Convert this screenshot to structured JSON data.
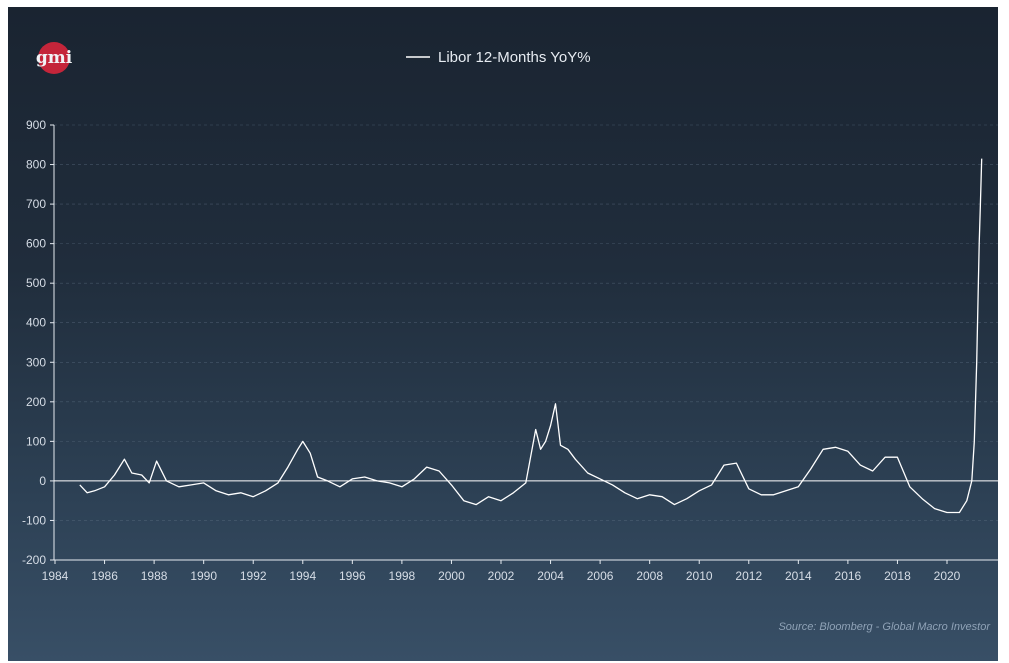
{
  "logo": {
    "text": "gmi",
    "color": "#c4253a"
  },
  "source": "Source: Bloomberg - Global Macro Investor",
  "colors": {
    "line": "#ffffff",
    "grid": "#5f7285",
    "axis": "#e6ebf1"
  },
  "chart_data": {
    "type": "line",
    "title": "",
    "xlabel": "",
    "ylabel": "",
    "xlim": [
      1984,
      2022
    ],
    "ylim": [
      -200,
      900
    ],
    "x_ticks": [
      1984,
      1986,
      1988,
      1990,
      1992,
      1994,
      1996,
      1998,
      2000,
      2002,
      2004,
      2006,
      2008,
      2010,
      2012,
      2014,
      2016,
      2018,
      2020
    ],
    "y_ticks": [
      -200,
      -100,
      0,
      100,
      200,
      300,
      400,
      500,
      600,
      700,
      800,
      900
    ],
    "grid": "horizontal dashed",
    "legend": "top-center",
    "series": [
      {
        "name": "Libor 12-Months YoY%",
        "x": [
          1985.0,
          1985.3,
          1985.6,
          1986.0,
          1986.4,
          1986.8,
          1987.1,
          1987.5,
          1987.8,
          1988.1,
          1988.5,
          1989.0,
          1989.5,
          1990.0,
          1990.5,
          1991.0,
          1991.5,
          1992.0,
          1992.5,
          1993.0,
          1993.4,
          1993.8,
          1994.0,
          1994.3,
          1994.6,
          1995.0,
          1995.5,
          1996.0,
          1996.5,
          1997.0,
          1997.5,
          1998.0,
          1998.5,
          1999.0,
          1999.5,
          2000.0,
          2000.5,
          2001.0,
          2001.5,
          2002.0,
          2002.5,
          2003.0,
          2003.4,
          2003.6,
          2003.8,
          2004.0,
          2004.2,
          2004.4,
          2004.7,
          2005.0,
          2005.5,
          2006.0,
          2006.5,
          2007.0,
          2007.5,
          2008.0,
          2008.5,
          2009.0,
          2009.5,
          2010.0,
          2010.5,
          2011.0,
          2011.5,
          2012.0,
          2012.5,
          2013.0,
          2013.5,
          2014.0,
          2014.5,
          2015.0,
          2015.5,
          2016.0,
          2016.5,
          2017.0,
          2017.5,
          2018.0,
          2018.5,
          2019.0,
          2019.5,
          2020.0,
          2020.5,
          2020.8,
          2021.0,
          2021.1,
          2021.2,
          2021.3,
          2021.35,
          2021.4
        ],
        "values": [
          -10,
          -30,
          -25,
          -15,
          15,
          55,
          20,
          15,
          -5,
          50,
          0,
          -15,
          -10,
          -5,
          -25,
          -35,
          -30,
          -40,
          -25,
          -5,
          35,
          80,
          100,
          70,
          10,
          0,
          -15,
          5,
          10,
          0,
          -5,
          -15,
          5,
          35,
          25,
          -10,
          -50,
          -60,
          -40,
          -50,
          -30,
          -5,
          130,
          80,
          100,
          140,
          195,
          90,
          80,
          55,
          20,
          5,
          -10,
          -30,
          -45,
          -35,
          -40,
          -60,
          -45,
          -25,
          -10,
          40,
          45,
          -20,
          -35,
          -35,
          -25,
          -15,
          30,
          80,
          85,
          75,
          40,
          25,
          60,
          60,
          -15,
          -45,
          -70,
          -80,
          -80,
          -50,
          0,
          100,
          300,
          600,
          700,
          815
        ]
      }
    ]
  }
}
